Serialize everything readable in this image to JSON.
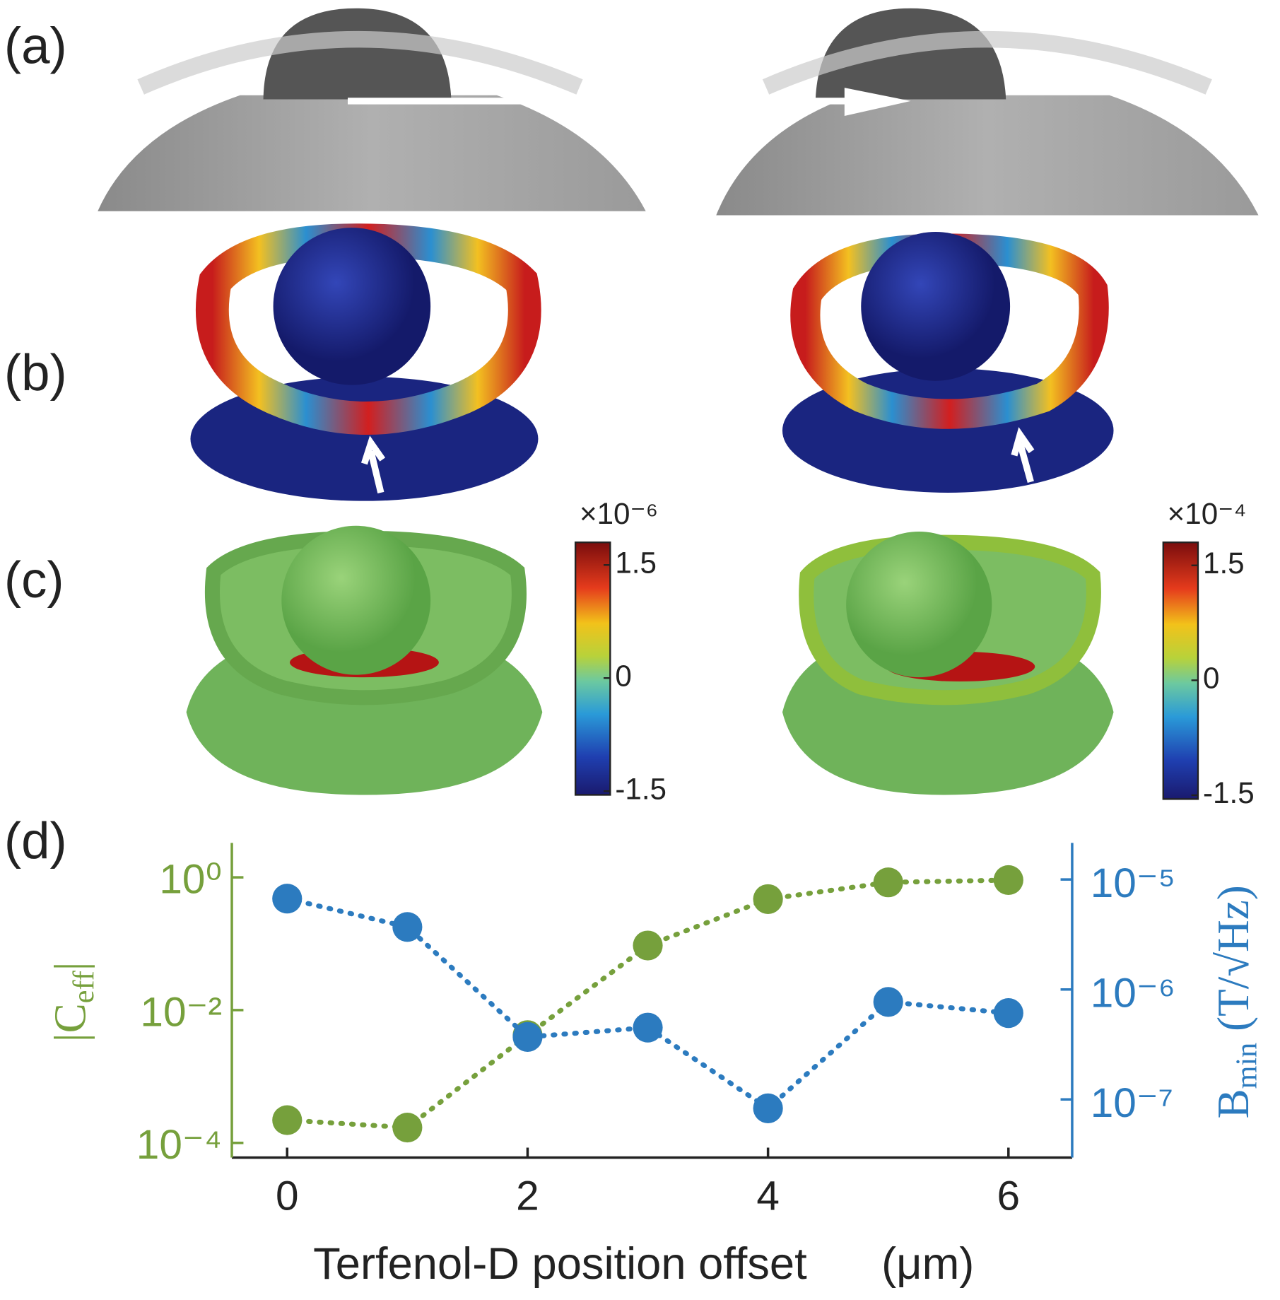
{
  "panel_labels": [
    "(a)",
    "(b)",
    "(c)",
    "(d)"
  ],
  "colorbars": [
    {
      "label": "×10⁻⁶",
      "clim": [
        -1.55,
        1.8
      ],
      "ticks": [
        1.5,
        0,
        -1.5
      ]
    },
    {
      "label": "×10⁻⁴",
      "clim": [
        -1.55,
        1.8
      ],
      "ticks": [
        1.5,
        0,
        -1.5
      ]
    }
  ],
  "chart_data": {
    "type": "scatter",
    "xlabel": "Terfenol-D position offset      (μm)",
    "ylabel": {
      "main": "|C",
      "sub": "eff",
      "end": "|"
    },
    "y2label": {
      "main": "B",
      "sub": "min",
      "end": " (T/√Hz)"
    },
    "x": [
      0,
      1,
      2,
      3,
      4,
      5,
      6
    ],
    "xlim": [
      -0.46,
      6.53
    ],
    "xticks": [
      0,
      2,
      4,
      6
    ],
    "yscale": "log",
    "ylim": [
      6e-05,
      3.3
    ],
    "yticks": [
      {
        "value": 1,
        "label": "10⁰"
      },
      {
        "value": 0.01,
        "label": "10⁻²"
      },
      {
        "value": 0.0001,
        "label": "10⁻⁴"
      }
    ],
    "y2lim": [
      2.96e-08,
      2.15e-05
    ],
    "y2ticks": [
      {
        "value": 1e-05,
        "label": "10⁻⁵"
      },
      {
        "value": 1e-06,
        "label": "10⁻⁶"
      },
      {
        "value": 1e-07,
        "label": "10⁻⁷"
      }
    ],
    "series": [
      {
        "color": "#76a03c",
        "values": [
          0.00022,
          0.00017,
          0.0042,
          0.094,
          0.47,
          0.84,
          0.91
        ]
      },
      {
        "color": "#2c7bbf",
        "axis": "y2",
        "values": [
          6.7e-06,
          3.7e-06,
          3.7e-07,
          4.5e-07,
          8.3e-08,
          7.7e-07,
          6.1e-07
        ]
      }
    ]
  }
}
